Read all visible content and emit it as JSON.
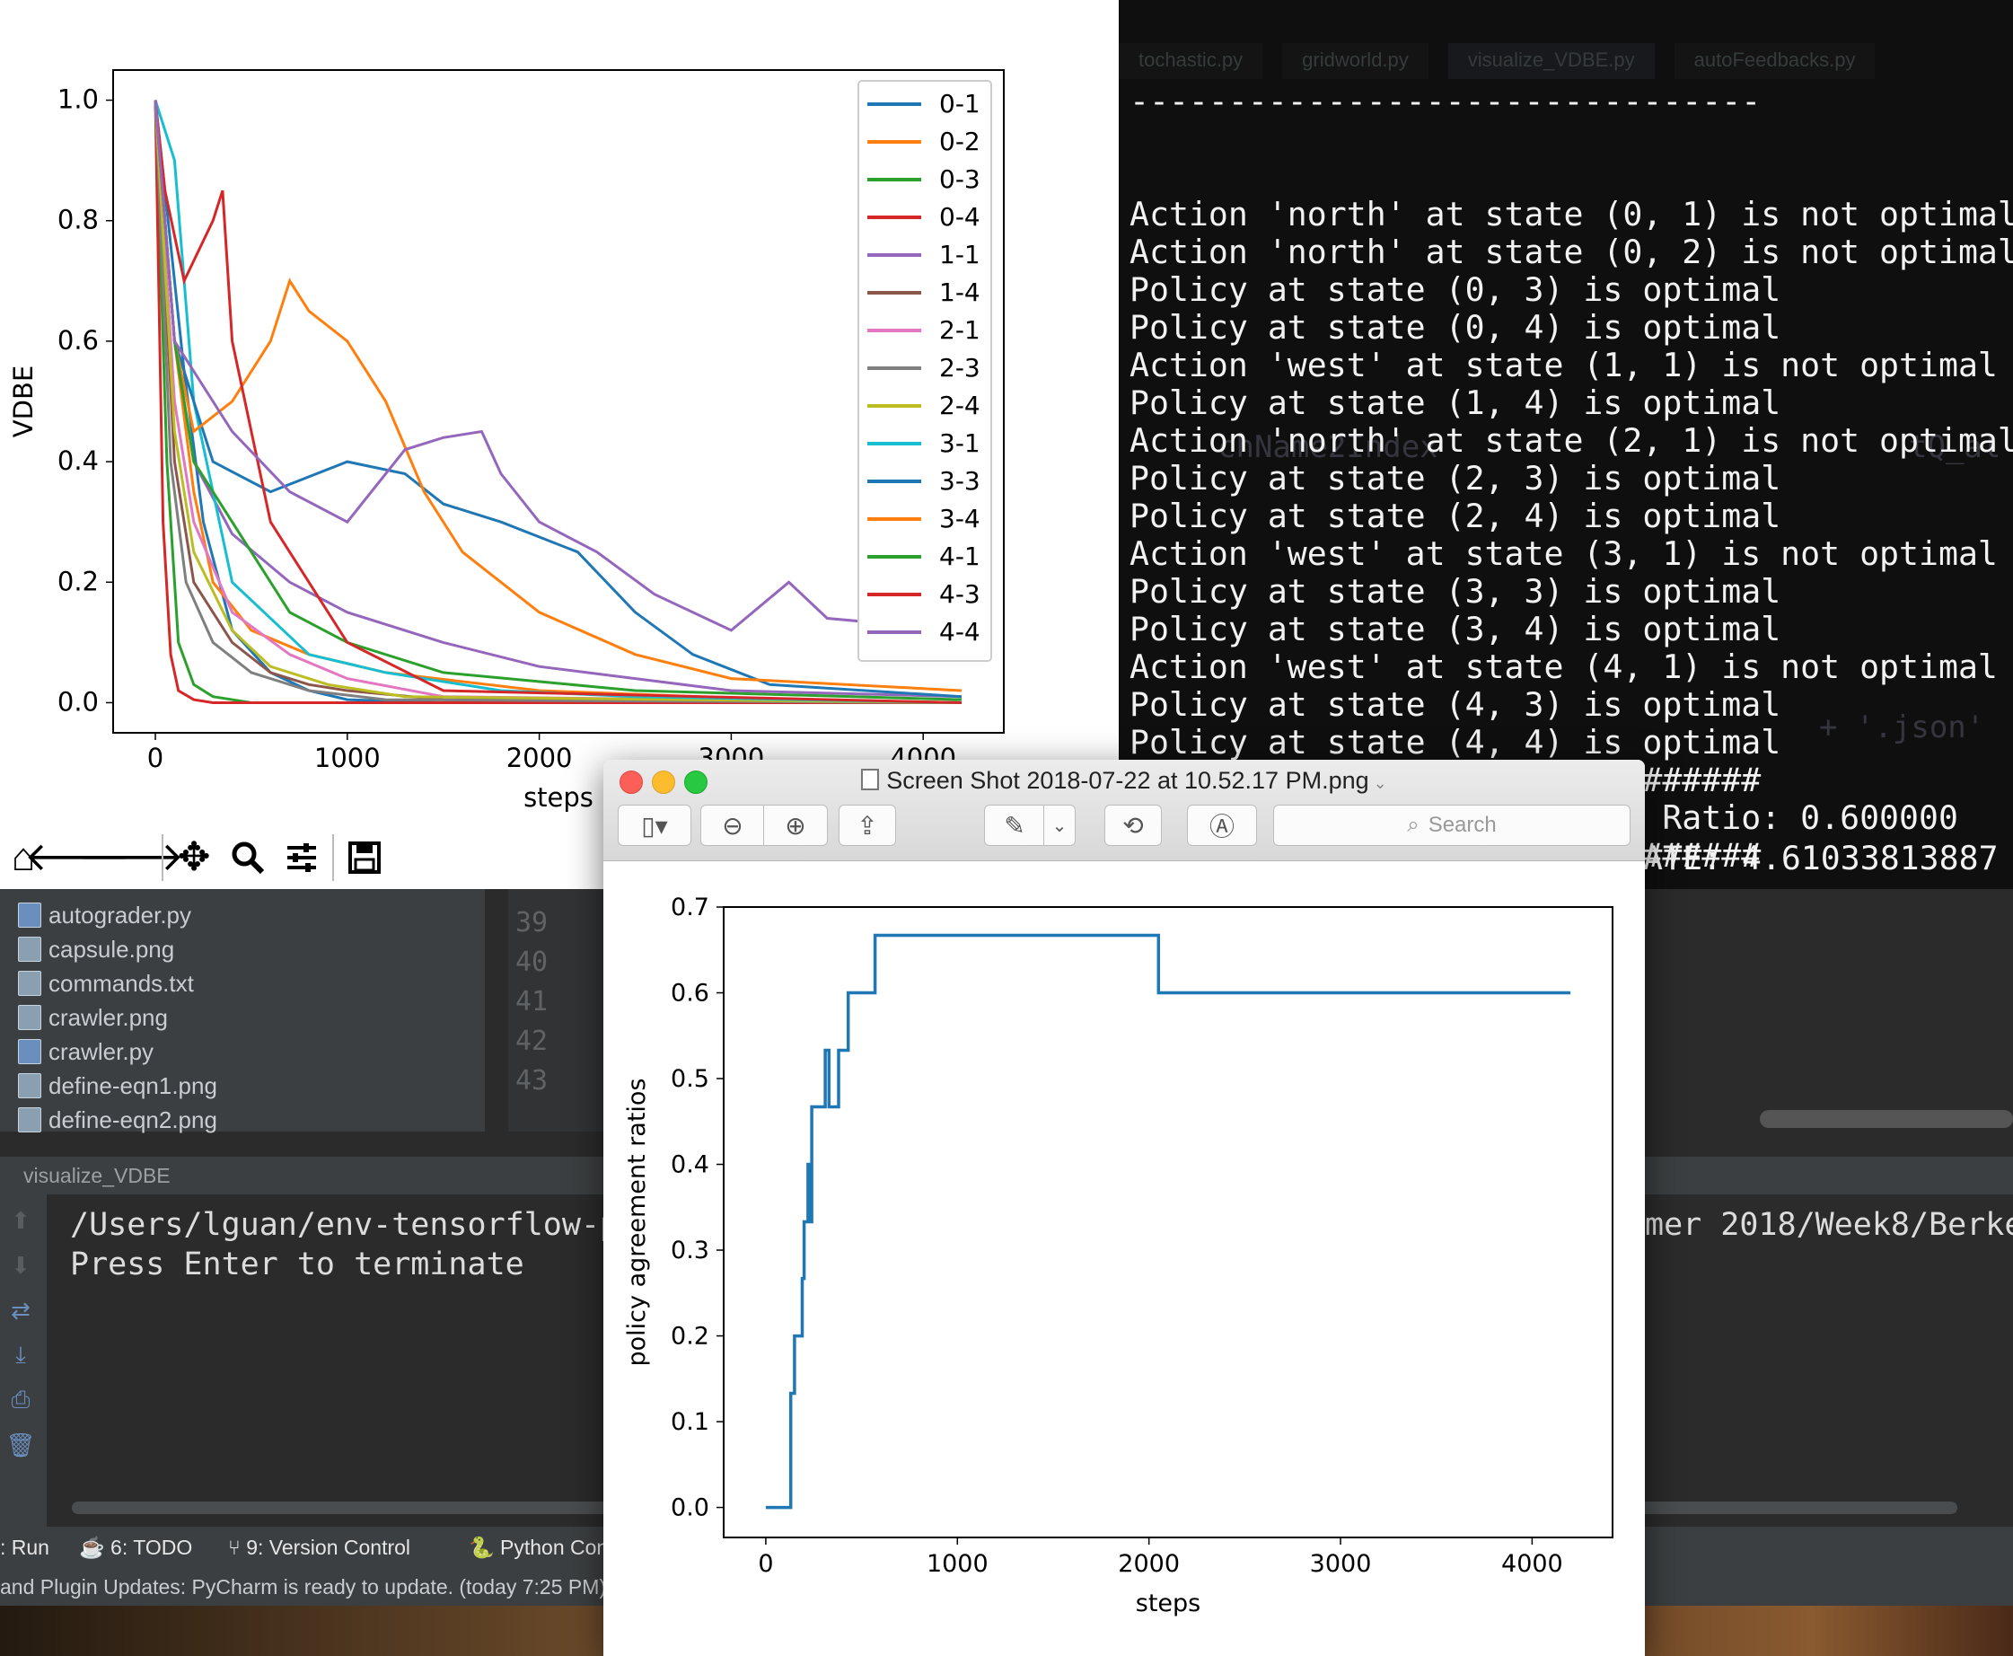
{
  "terminal": {
    "separator": "--------------------------------",
    "lines": [
      "Action 'north' at state (0, 1) is not optimal",
      "Action 'north' at state (0, 2) is not optimal",
      "Policy at state (0, 3) is optimal",
      "Policy at state (0, 4) is optimal",
      "Action 'west' at state (1, 1) is not optimal",
      "Policy at state (1, 4) is optimal",
      "Action 'north' at state (2, 1) is not optimal",
      "Policy at state (2, 3) is optimal",
      "Policy at state (2, 4) is optimal",
      "Action 'west' at state (3, 1) is not optimal",
      "Policy at state (3, 3) is optimal",
      "Policy at state (3, 4) is optimal",
      "Action 'west' at state (4, 1) is not optimal",
      "Policy at state (4, 3) is optimal",
      "Policy at state (4, 4) is optimal",
      "################################",
      "Current Policy Convergence Ratio: 0.600000",
      "################################"
    ],
    "bottom_line": "ATE: 4.61033813887",
    "ghost_tabs": [
      "tochastic.py",
      "gridworld.py",
      "visualize_VDBE.py",
      "autoFeedbacks.py"
    ],
    "ghost_code_1": "chName2Index",
    "ghost_code_2": "tQ_al",
    "ghost_code_3": "+ '.json'"
  },
  "vdbe_chart": {
    "chart_data": {
      "type": "line",
      "title": "",
      "xlabel": "steps",
      "ylabel": "VDBE",
      "xlim": [
        -220,
        4420
      ],
      "ylim": [
        -0.05,
        1.05
      ],
      "x_ticks": [
        0,
        1000,
        2000,
        3000,
        4000
      ],
      "y_ticks": [
        0.0,
        0.2,
        0.4,
        0.6,
        0.8,
        1.0
      ],
      "legend_position": "top-right",
      "series": [
        {
          "name": "0-1",
          "color": "#1f77b4",
          "x": [
            0,
            150,
            250,
            400,
            600,
            800,
            1000,
            1500,
            4200
          ],
          "y": [
            1.0,
            0.55,
            0.3,
            0.12,
            0.05,
            0.02,
            0.005,
            0.0,
            0.0
          ]
        },
        {
          "name": "0-2",
          "color": "#ff7f0e",
          "x": [
            0,
            100,
            200,
            300,
            500,
            800,
            1200,
            2000,
            3000,
            4200
          ],
          "y": [
            1.0,
            0.6,
            0.35,
            0.2,
            0.12,
            0.08,
            0.05,
            0.02,
            0.008,
            0.0
          ]
        },
        {
          "name": "0-3",
          "color": "#2ca02c",
          "x": [
            0,
            60,
            120,
            200,
            300,
            500,
            4200
          ],
          "y": [
            1.0,
            0.4,
            0.1,
            0.03,
            0.01,
            0.0,
            0.0
          ]
        },
        {
          "name": "0-4",
          "color": "#d62728",
          "x": [
            0,
            40,
            80,
            120,
            200,
            300,
            4200
          ],
          "y": [
            1.0,
            0.3,
            0.08,
            0.02,
            0.005,
            0.0,
            0.0
          ]
        },
        {
          "name": "1-1",
          "color": "#9467bd",
          "x": [
            0,
            100,
            200,
            400,
            700,
            1000,
            1500,
            2000,
            2500,
            3000,
            4200
          ],
          "y": [
            1.0,
            0.6,
            0.4,
            0.28,
            0.2,
            0.15,
            0.1,
            0.06,
            0.04,
            0.02,
            0.01
          ]
        },
        {
          "name": "1-4",
          "color": "#8c564b",
          "x": [
            0,
            100,
            200,
            400,
            600,
            800,
            1000,
            1500,
            4200
          ],
          "y": [
            1.0,
            0.4,
            0.2,
            0.1,
            0.05,
            0.03,
            0.02,
            0.005,
            0.0
          ]
        },
        {
          "name": "2-1",
          "color": "#e377c2",
          "x": [
            0,
            100,
            200,
            400,
            700,
            1000,
            1500,
            4200
          ],
          "y": [
            1.0,
            0.5,
            0.3,
            0.15,
            0.08,
            0.04,
            0.01,
            0.0
          ]
        },
        {
          "name": "2-3",
          "color": "#7f7f7f",
          "x": [
            0,
            80,
            160,
            300,
            500,
            800,
            1200,
            4200
          ],
          "y": [
            1.0,
            0.4,
            0.2,
            0.1,
            0.05,
            0.02,
            0.005,
            0.0
          ]
        },
        {
          "name": "2-4",
          "color": "#bcbd22",
          "x": [
            0,
            100,
            200,
            400,
            600,
            900,
            1300,
            4200
          ],
          "y": [
            1.0,
            0.45,
            0.25,
            0.12,
            0.06,
            0.03,
            0.01,
            0.0
          ]
        },
        {
          "name": "3-1",
          "color": "#17becf",
          "x": [
            0,
            100,
            200,
            400,
            800,
            1200,
            1800,
            2500,
            4200
          ],
          "y": [
            1.0,
            0.9,
            0.5,
            0.2,
            0.08,
            0.05,
            0.02,
            0.01,
            0.0
          ]
        },
        {
          "name": "3-3",
          "color": "#1f77b4",
          "x": [
            0,
            100,
            300,
            600,
            1000,
            1300,
            1500,
            1800,
            2200,
            2500,
            2800,
            3200,
            4200
          ],
          "y": [
            1.0,
            0.6,
            0.4,
            0.35,
            0.4,
            0.38,
            0.33,
            0.3,
            0.25,
            0.15,
            0.08,
            0.03,
            0.01
          ]
        },
        {
          "name": "3-4",
          "color": "#ff7f0e",
          "x": [
            0,
            100,
            200,
            400,
            600,
            700,
            800,
            1000,
            1200,
            1400,
            1600,
            2000,
            2500,
            3000,
            4200
          ],
          "y": [
            1.0,
            0.6,
            0.45,
            0.5,
            0.6,
            0.7,
            0.65,
            0.6,
            0.5,
            0.35,
            0.25,
            0.15,
            0.08,
            0.04,
            0.02
          ]
        },
        {
          "name": "4-1",
          "color": "#2ca02c",
          "x": [
            0,
            100,
            200,
            400,
            700,
            1000,
            1500,
            2500,
            4200
          ],
          "y": [
            1.0,
            0.6,
            0.4,
            0.3,
            0.15,
            0.1,
            0.05,
            0.02,
            0.005
          ]
        },
        {
          "name": "4-3",
          "color": "#d62728",
          "x": [
            0,
            50,
            150,
            300,
            350,
            400,
            600,
            1000,
            1500,
            4200
          ],
          "y": [
            1.0,
            0.85,
            0.7,
            0.8,
            0.85,
            0.6,
            0.3,
            0.1,
            0.02,
            0.0
          ]
        },
        {
          "name": "4-4",
          "color": "#9467bd",
          "x": [
            0,
            100,
            400,
            700,
            1000,
            1300,
            1500,
            1700,
            1800,
            2000,
            2300,
            2600,
            3000,
            3300,
            3500,
            4200
          ],
          "y": [
            1.0,
            0.6,
            0.45,
            0.35,
            0.3,
            0.42,
            0.44,
            0.45,
            0.38,
            0.3,
            0.25,
            0.18,
            0.12,
            0.2,
            0.14,
            0.12
          ]
        }
      ]
    },
    "toolbar": {
      "home_icon": "home-icon",
      "back_icon": "back-arrow-icon",
      "forward_icon": "forward-arrow-icon",
      "pan_icon": "pan-move-icon",
      "zoom_icon": "zoom-magnifier-icon",
      "configure_icon": "configure-sliders-icon",
      "save_icon": "save-disk-icon"
    }
  },
  "pycharm": {
    "project_files": [
      {
        "name": "autograder.py",
        "type": "py"
      },
      {
        "name": "capsule.png",
        "type": "img"
      },
      {
        "name": "commands.txt",
        "type": "txt"
      },
      {
        "name": "crawler.png",
        "type": "img"
      },
      {
        "name": "crawler.py",
        "type": "py"
      },
      {
        "name": "define-eqn1.png",
        "type": "img"
      },
      {
        "name": "define-eqn2.png",
        "type": "img"
      }
    ],
    "line_numbers": [
      "39",
      "40",
      "41",
      "42",
      "43"
    ],
    "run_tab_title": "visualize_VDBE",
    "run_output": [
      "/Users/lguan/env-tensorflow-py",
      "Press Enter to terminate"
    ],
    "run_output_right": "mer 2018/Week8/Berkel",
    "tool_tabs": [
      {
        "label": ": Run"
      },
      {
        "label": "6: TODO"
      },
      {
        "label": "9: Version Control"
      },
      {
        "label": "Python Con"
      }
    ],
    "status_text": "and Plugin Updates: PyCharm is ready to update. (today 7:25 PM)"
  },
  "preview": {
    "title": "Screen Shot 2018-07-22 at 10.52.17 PM.png",
    "search_placeholder": "Search",
    "chart_data": {
      "type": "line",
      "title": "",
      "xlabel": "steps",
      "ylabel": "policy agreement ratios",
      "xlim": [
        -220,
        4420
      ],
      "ylim": [
        -0.035,
        0.7
      ],
      "x_ticks": [
        0,
        1000,
        2000,
        3000,
        4000
      ],
      "y_ticks": [
        0.0,
        0.1,
        0.2,
        0.3,
        0.4,
        0.5,
        0.6,
        0.7
      ],
      "series": [
        {
          "color": "#1f77b4",
          "x": [
            0,
            130,
            130,
            150,
            150,
            190,
            190,
            200,
            200,
            220,
            220,
            230,
            230,
            240,
            240,
            310,
            310,
            330,
            330,
            380,
            380,
            430,
            430,
            570,
            570,
            2050,
            2050,
            4200
          ],
          "y": [
            0.0,
            0.0,
            0.133,
            0.133,
            0.2,
            0.2,
            0.267,
            0.267,
            0.333,
            0.333,
            0.4,
            0.4,
            0.333,
            0.333,
            0.467,
            0.467,
            0.533,
            0.533,
            0.467,
            0.467,
            0.533,
            0.533,
            0.6,
            0.6,
            0.667,
            0.667,
            0.6,
            0.6
          ]
        }
      ]
    }
  }
}
